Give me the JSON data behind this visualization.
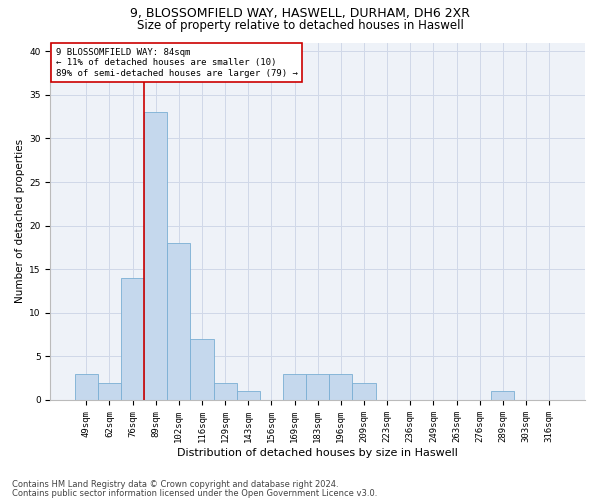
{
  "title1": "9, BLOSSOMFIELD WAY, HASWELL, DURHAM, DH6 2XR",
  "title2": "Size of property relative to detached houses in Haswell",
  "xlabel": "Distribution of detached houses by size in Haswell",
  "ylabel": "Number of detached properties",
  "categories": [
    "49sqm",
    "62sqm",
    "76sqm",
    "89sqm",
    "102sqm",
    "116sqm",
    "129sqm",
    "143sqm",
    "156sqm",
    "169sqm",
    "183sqm",
    "196sqm",
    "209sqm",
    "223sqm",
    "236sqm",
    "249sqm",
    "263sqm",
    "276sqm",
    "289sqm",
    "303sqm",
    "316sqm"
  ],
  "values": [
    3,
    2,
    14,
    33,
    18,
    7,
    2,
    1,
    0,
    3,
    3,
    3,
    2,
    0,
    0,
    0,
    0,
    0,
    1,
    0,
    0
  ],
  "bar_color": "#c5d8ed",
  "bar_edge_color": "#7aafd4",
  "vline_color": "#cc0000",
  "annotation_box_text": "9 BLOSSOMFIELD WAY: 84sqm\n← 11% of detached houses are smaller (10)\n89% of semi-detached houses are larger (79) →",
  "annotation_box_color": "#cc0000",
  "ylim": [
    0,
    41
  ],
  "yticks": [
    0,
    5,
    10,
    15,
    20,
    25,
    30,
    35,
    40
  ],
  "grid_color": "#d0d8e8",
  "bg_color": "#eef2f8",
  "footnote1": "Contains HM Land Registry data © Crown copyright and database right 2024.",
  "footnote2": "Contains public sector information licensed under the Open Government Licence v3.0.",
  "title1_fontsize": 9,
  "title2_fontsize": 8.5,
  "xlabel_fontsize": 8,
  "ylabel_fontsize": 7.5,
  "tick_fontsize": 6.5,
  "annot_fontsize": 6.5,
  "footnote_fontsize": 6
}
